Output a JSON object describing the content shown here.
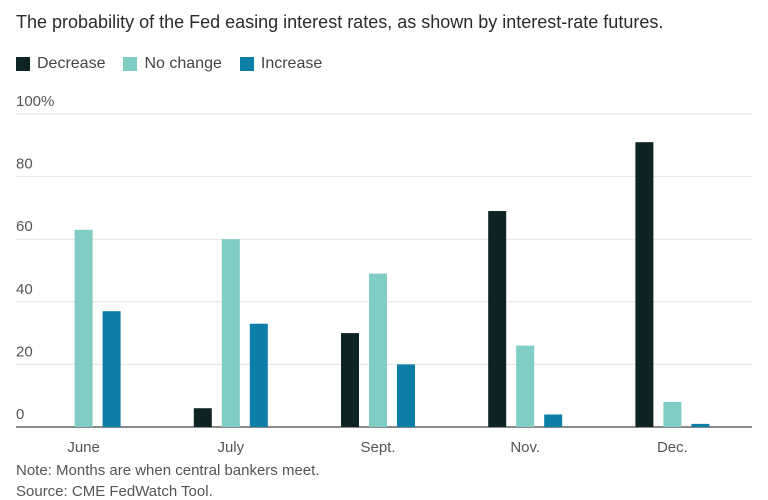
{
  "title": "The probability of the Fed easing interest rates, as shown by interest-rate futures.",
  "note": "Note: Months are when central bankers meet.",
  "source": "Source: CME FedWatch Tool.",
  "colors": {
    "Decrease": "#0e2323",
    "No change": "#7fcdc4",
    "Increase": "#0c7ea8"
  },
  "chart_data": {
    "type": "bar",
    "categories": [
      "June",
      "July",
      "Sept.",
      "Nov.",
      "Dec."
    ],
    "series": [
      {
        "name": "Decrease",
        "values": [
          0,
          6,
          30,
          69,
          91
        ]
      },
      {
        "name": "No change",
        "values": [
          63,
          60,
          49,
          26,
          8
        ]
      },
      {
        "name": "Increase",
        "values": [
          37,
          33,
          20,
          4,
          1
        ]
      }
    ],
    "ylim": [
      0,
      100
    ],
    "yticks": [
      "0",
      "20",
      "40",
      "60",
      "80",
      "100%"
    ],
    "ytick_values": [
      0,
      20,
      40,
      60,
      80,
      100
    ],
    "grid": true,
    "legend_position": "top-left"
  }
}
